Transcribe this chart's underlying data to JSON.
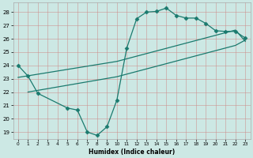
{
  "xlabel": "Humidex (Indice chaleur)",
  "bg_color": "#cce8e4",
  "line_color": "#1a7a6e",
  "xlim": [
    -0.5,
    23.5
  ],
  "ylim": [
    18.5,
    28.7
  ],
  "xticks": [
    0,
    1,
    2,
    3,
    4,
    5,
    6,
    7,
    8,
    9,
    10,
    11,
    12,
    13,
    14,
    15,
    16,
    17,
    18,
    19,
    20,
    21,
    22,
    23
  ],
  "yticks": [
    19,
    20,
    21,
    22,
    23,
    24,
    25,
    26,
    27,
    28
  ],
  "line1_x": [
    0,
    1,
    2,
    5,
    6,
    7,
    8,
    9,
    10,
    11,
    12,
    13,
    14,
    15,
    16,
    17,
    18,
    19,
    20,
    21,
    22,
    23
  ],
  "line1_y": [
    24.0,
    23.2,
    21.9,
    20.8,
    20.65,
    19.0,
    18.75,
    19.4,
    21.4,
    25.3,
    27.5,
    28.0,
    28.05,
    28.3,
    27.75,
    27.55,
    27.55,
    27.15,
    26.6,
    26.55,
    26.55,
    26.05
  ],
  "line2_x": [
    0,
    10,
    22,
    23
  ],
  "line2_y": [
    23.1,
    24.3,
    26.65,
    25.8
  ],
  "line3_x": [
    1,
    10,
    22,
    23
  ],
  "line3_y": [
    22.0,
    23.15,
    25.5,
    25.9
  ],
  "marker": "D",
  "markersize": 2.5,
  "linewidth": 0.9
}
